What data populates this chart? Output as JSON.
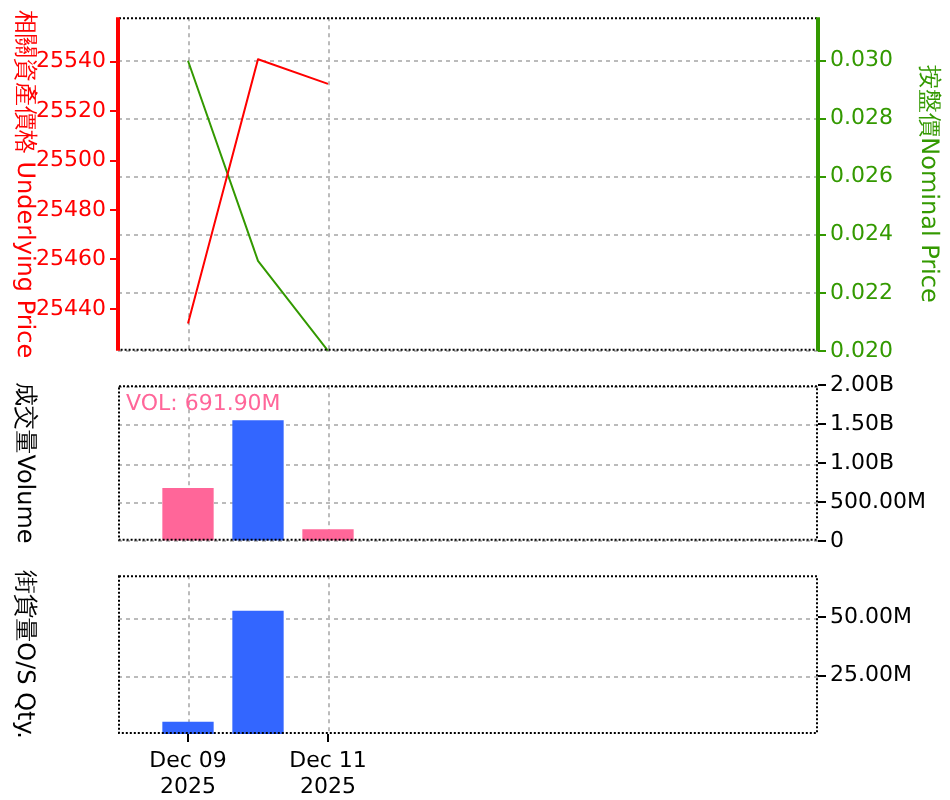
{
  "chart_data": [
    {
      "type": "line",
      "ylabel": "相關資產價格 Underlying Price",
      "y2label": "按盤價Nominal Price",
      "x": [
        "2025-12-09",
        "2025-12-10",
        "2025-12-11"
      ],
      "xlim": [
        "2025-12-08",
        "2025-12-18"
      ],
      "xticks": [
        {
          "value": "2025-12-09",
          "label": null
        },
        {
          "value": "2025-12-11",
          "label": null
        }
      ],
      "ylim": [
        25423,
        25558
      ],
      "yticks": [
        25440,
        25460,
        25480,
        25500,
        25520,
        25540
      ],
      "y2lim": [
        0.02,
        0.0315
      ],
      "y2ticks": [
        {
          "value": 0.02,
          "label": "0.020"
        },
        {
          "value": 0.022,
          "label": "0.022"
        },
        {
          "value": 0.024,
          "label": "0.024"
        },
        {
          "value": 0.026,
          "label": "0.026"
        },
        {
          "value": 0.028,
          "label": "0.028"
        },
        {
          "value": 0.03,
          "label": "0.030"
        }
      ],
      "series": [
        {
          "color": "#ff0000",
          "values": [
            25434,
            25541,
            25531
          ]
        },
        {
          "color": "#339900",
          "axis": "y2",
          "values": [
            0.03,
            0.0231,
            0.02
          ]
        }
      ],
      "grid": true,
      "legend": false,
      "tick_labels": "y",
      "marker": "none"
    },
    {
      "type": "bar",
      "ylabel": "成交量Volume",
      "x": [
        "2025-12-09",
        "2025-12-10",
        "2025-12-11"
      ],
      "xlim": [
        "2025-12-08",
        "2025-12-18"
      ],
      "xticks": [
        {
          "value": "2025-12-09",
          "label": null
        },
        {
          "value": "2025-12-11",
          "label": null
        }
      ],
      "ylim": [
        0,
        2000000000
      ],
      "yticks": [
        0,
        {
          "value": 500000000,
          "label": "500.00M"
        },
        {
          "value": 1000000000,
          "label": "1.00B"
        },
        {
          "value": 1500000000,
          "label": "1.50B"
        },
        {
          "value": 2000000000,
          "label": "2.00B"
        }
      ],
      "series": [
        {
          "colors": [
            "#ff6699",
            "#3366ff",
            "#ff6699"
          ],
          "values": [
            670000000,
            1540000000,
            140000000
          ]
        }
      ],
      "annotations": [
        "VOL: 691.90M"
      ],
      "grid": true,
      "legend": false,
      "tick_labels": "y"
    },
    {
      "type": "bar",
      "ylabel": "街貨量O/S Qty.",
      "xlim": [
        "2025-12-08",
        "2025-12-18"
      ],
      "xticks": [
        {
          "value": "2025-12-09",
          "label": "Dec 09\n2025"
        },
        {
          "value": "2025-12-11",
          "label": "Dec 11\n2025"
        }
      ],
      "ylim": [
        0,
        68000000
      ],
      "yticks": [
        {
          "value": 25000000,
          "label": "25.00M"
        },
        {
          "value": 50000000,
          "label": "50.00M"
        }
      ],
      "series": [
        {
          "color": "#3366ff",
          "x": [
            "2025-12-09",
            "2025-12-10"
          ],
          "values": [
            5000000,
            52500000
          ]
        }
      ],
      "grid": true,
      "legend": false
    }
  ]
}
